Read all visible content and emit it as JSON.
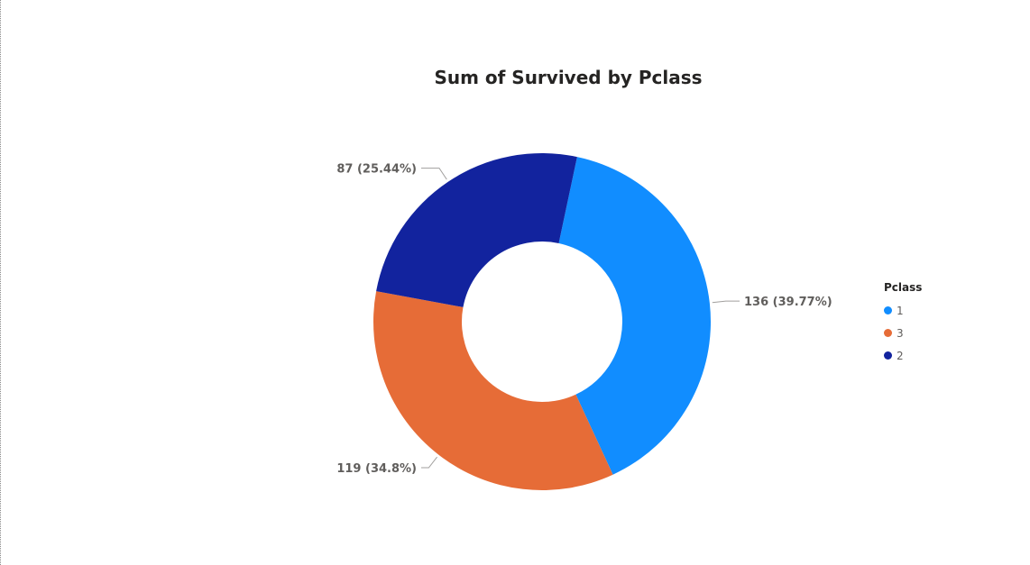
{
  "chart_data": {
    "type": "pie",
    "title": "Sum of Survived by Pclass",
    "legend_title": "Pclass",
    "legend_position": "right",
    "donut": true,
    "slices": [
      {
        "category": "1",
        "value": 136,
        "percent": "39.77%",
        "label": "136 (39.77%)",
        "color": "#118dff"
      },
      {
        "category": "3",
        "value": 119,
        "percent": "34.8%",
        "label": "119 (34.8%)",
        "color": "#e66c37"
      },
      {
        "category": "2",
        "value": 87,
        "percent": "25.44%",
        "label": "87 (25.44%)",
        "color": "#12239e"
      }
    ]
  }
}
